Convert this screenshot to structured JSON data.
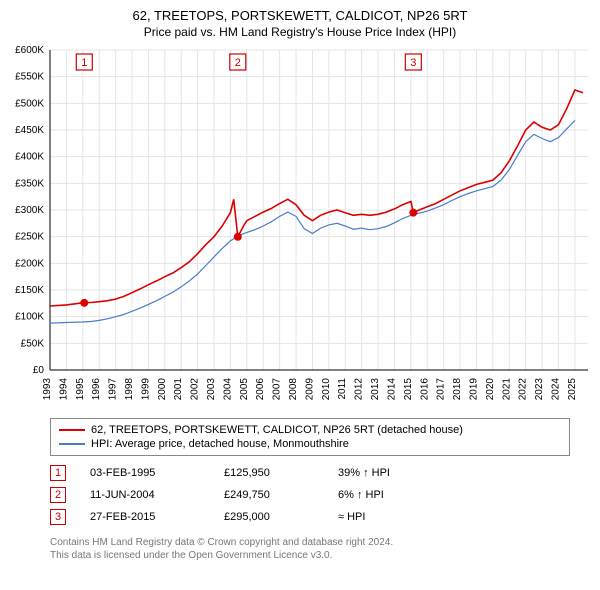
{
  "title_line1": "62, TREETOPS, PORTSKEWETT, CALDICOT, NP26 5RT",
  "title_line2": "Price paid vs. HM Land Registry's House Price Index (HPI)",
  "chart": {
    "type": "line",
    "background_color": "#ffffff",
    "grid_color": "#e5e5e5",
    "axis_color": "#000000",
    "tick_fontsize": 10,
    "year_min": 1993,
    "year_max": 2025.8,
    "x_ticks": [
      1993,
      1994,
      1995,
      1996,
      1997,
      1998,
      1999,
      2000,
      2001,
      2002,
      2003,
      2004,
      2005,
      2006,
      2007,
      2008,
      2009,
      2010,
      2011,
      2012,
      2013,
      2014,
      2015,
      2016,
      2017,
      2018,
      2019,
      2020,
      2021,
      2022,
      2023,
      2024,
      2025
    ],
    "ylim": [
      0,
      600000
    ],
    "y_ticks": [
      0,
      50000,
      100000,
      150000,
      200000,
      250000,
      300000,
      350000,
      400000,
      450000,
      500000,
      550000,
      600000
    ],
    "y_tick_labels": [
      "£0",
      "£50K",
      "£100K",
      "£150K",
      "£200K",
      "£250K",
      "£300K",
      "£350K",
      "£400K",
      "£450K",
      "£500K",
      "£550K",
      "£600K"
    ],
    "series": [
      {
        "name": "62, TREETOPS, PORTSKEWETT, CALDICOT, NP26 5RT (detached house)",
        "color": "#dd0000",
        "line_width": 1.6,
        "data": [
          [
            1993,
            120000
          ],
          [
            1994,
            122000
          ],
          [
            1995,
            125950
          ],
          [
            1995.5,
            126500
          ],
          [
            1996,
            128000
          ],
          [
            1996.5,
            130000
          ],
          [
            1997,
            133000
          ],
          [
            1997.5,
            138000
          ],
          [
            1998,
            145000
          ],
          [
            1998.5,
            152000
          ],
          [
            1999,
            160000
          ],
          [
            1999.5,
            167000
          ],
          [
            2000,
            175000
          ],
          [
            2000.5,
            182000
          ],
          [
            2001,
            192000
          ],
          [
            2001.5,
            203000
          ],
          [
            2002,
            218000
          ],
          [
            2002.5,
            235000
          ],
          [
            2003,
            250000
          ],
          [
            2003.5,
            270000
          ],
          [
            2004,
            295000
          ],
          [
            2004.2,
            320000
          ],
          [
            2004.45,
            249750
          ],
          [
            2004.8,
            270000
          ],
          [
            2005,
            280000
          ],
          [
            2005.5,
            288000
          ],
          [
            2006,
            296000
          ],
          [
            2006.5,
            303000
          ],
          [
            2007,
            312000
          ],
          [
            2007.5,
            320000
          ],
          [
            2008,
            310000
          ],
          [
            2008.5,
            290000
          ],
          [
            2009,
            280000
          ],
          [
            2009.5,
            290000
          ],
          [
            2010,
            296000
          ],
          [
            2010.5,
            300000
          ],
          [
            2011,
            295000
          ],
          [
            2011.5,
            290000
          ],
          [
            2012,
            292000
          ],
          [
            2012.5,
            290000
          ],
          [
            2013,
            292000
          ],
          [
            2013.5,
            296000
          ],
          [
            2014,
            302000
          ],
          [
            2014.5,
            310000
          ],
          [
            2015,
            316000
          ],
          [
            2015.15,
            295000
          ],
          [
            2015.5,
            300000
          ],
          [
            2016,
            306000
          ],
          [
            2016.5,
            312000
          ],
          [
            2017,
            320000
          ],
          [
            2017.5,
            328000
          ],
          [
            2018,
            336000
          ],
          [
            2018.5,
            342000
          ],
          [
            2019,
            348000
          ],
          [
            2019.5,
            352000
          ],
          [
            2020,
            356000
          ],
          [
            2020.5,
            370000
          ],
          [
            2021,
            392000
          ],
          [
            2021.5,
            420000
          ],
          [
            2022,
            450000
          ],
          [
            2022.5,
            465000
          ],
          [
            2023,
            455000
          ],
          [
            2023.5,
            450000
          ],
          [
            2024,
            460000
          ],
          [
            2024.5,
            490000
          ],
          [
            2025,
            525000
          ],
          [
            2025.5,
            520000
          ]
        ]
      },
      {
        "name": "HPI: Average price, detached house, Monmouthshire",
        "color": "#4a7bd0",
        "line_width": 1.2,
        "data": [
          [
            1993,
            88000
          ],
          [
            1994,
            89000
          ],
          [
            1995,
            90000
          ],
          [
            1995.5,
            91000
          ],
          [
            1996,
            93000
          ],
          [
            1996.5,
            96000
          ],
          [
            1997,
            100000
          ],
          [
            1997.5,
            104000
          ],
          [
            1998,
            110000
          ],
          [
            1998.5,
            116000
          ],
          [
            1999,
            123000
          ],
          [
            1999.5,
            130000
          ],
          [
            2000,
            138000
          ],
          [
            2000.5,
            146000
          ],
          [
            2001,
            156000
          ],
          [
            2001.5,
            167000
          ],
          [
            2002,
            180000
          ],
          [
            2002.5,
            196000
          ],
          [
            2003,
            212000
          ],
          [
            2003.5,
            228000
          ],
          [
            2004,
            242000
          ],
          [
            2004.5,
            252000
          ],
          [
            2005,
            258000
          ],
          [
            2005.5,
            263000
          ],
          [
            2006,
            270000
          ],
          [
            2006.5,
            278000
          ],
          [
            2007,
            288000
          ],
          [
            2007.5,
            296000
          ],
          [
            2008,
            288000
          ],
          [
            2008.5,
            265000
          ],
          [
            2009,
            256000
          ],
          [
            2009.5,
            266000
          ],
          [
            2010,
            272000
          ],
          [
            2010.5,
            275000
          ],
          [
            2011,
            270000
          ],
          [
            2011.5,
            264000
          ],
          [
            2012,
            266000
          ],
          [
            2012.5,
            263000
          ],
          [
            2013,
            265000
          ],
          [
            2013.5,
            269000
          ],
          [
            2014,
            276000
          ],
          [
            2014.5,
            284000
          ],
          [
            2015,
            290000
          ],
          [
            2015.5,
            294000
          ],
          [
            2016,
            298000
          ],
          [
            2016.5,
            304000
          ],
          [
            2017,
            310000
          ],
          [
            2017.5,
            318000
          ],
          [
            2018,
            325000
          ],
          [
            2018.5,
            331000
          ],
          [
            2019,
            336000
          ],
          [
            2019.5,
            340000
          ],
          [
            2020,
            344000
          ],
          [
            2020.5,
            356000
          ],
          [
            2021,
            376000
          ],
          [
            2021.5,
            402000
          ],
          [
            2022,
            428000
          ],
          [
            2022.5,
            442000
          ],
          [
            2023,
            434000
          ],
          [
            2023.5,
            428000
          ],
          [
            2024,
            436000
          ],
          [
            2024.5,
            452000
          ],
          [
            2025,
            468000
          ]
        ]
      }
    ],
    "sale_points": [
      {
        "year": 1995.09,
        "price": 125950,
        "color": "#dd0000"
      },
      {
        "year": 2004.45,
        "price": 249750,
        "color": "#dd0000"
      },
      {
        "year": 2015.15,
        "price": 295000,
        "color": "#dd0000"
      }
    ],
    "flag_markers": [
      {
        "n": "1",
        "year": 1995.09,
        "border": "#cc0000"
      },
      {
        "n": "2",
        "year": 2004.45,
        "border": "#cc0000"
      },
      {
        "n": "3",
        "year": 2015.15,
        "border": "#cc0000"
      }
    ]
  },
  "legend": {
    "items": [
      {
        "color": "#dd0000",
        "text": "62, TREETOPS, PORTSKEWETT, CALDICOT, NP26 5RT (detached house)"
      },
      {
        "color": "#4a7bd0",
        "text": "HPI: Average price, detached house, Monmouthshire"
      }
    ]
  },
  "table": {
    "rows": [
      {
        "n": "1",
        "date": "03-FEB-1995",
        "price": "£125,950",
        "delta": "39% ↑ HPI"
      },
      {
        "n": "2",
        "date": "11-JUN-2004",
        "price": "£249,750",
        "delta": "6% ↑ HPI"
      },
      {
        "n": "3",
        "date": "27-FEB-2015",
        "price": "£295,000",
        "delta": "≈ HPI"
      }
    ]
  },
  "footer_line1": "Contains HM Land Registry data © Crown copyright and database right 2024.",
  "footer_line2": "This data is licensed under the Open Government Licence v3.0."
}
